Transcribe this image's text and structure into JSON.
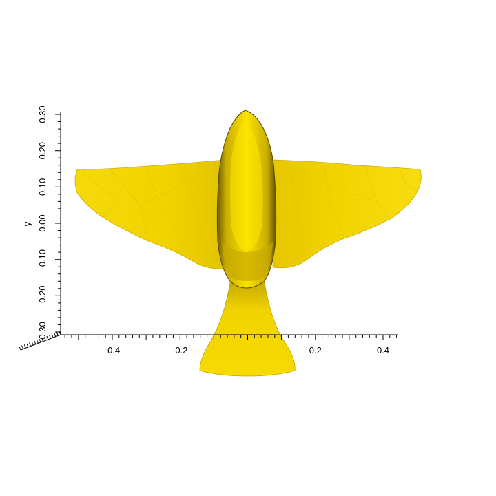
{
  "chart_data": {
    "type": "3d-mesh",
    "description_object": "bird",
    "mesh_color": "#f2d300",
    "x_axis": {
      "label": "",
      "ticks": [
        "-0.4",
        "-0.2",
        "0.2",
        "0.4"
      ],
      "tick_values": [
        -0.4,
        -0.2,
        0.2,
        0.4
      ],
      "range": [
        -0.55,
        0.45
      ]
    },
    "y_axis": {
      "label": "y",
      "ticks": [
        "0.30",
        "0.20",
        "0.10",
        "0.00",
        "-0.10",
        "-0.20",
        "-0.30"
      ],
      "tick_values": [
        0.3,
        0.2,
        0.1,
        0.0,
        -0.1,
        -0.2,
        -0.3
      ],
      "range": [
        -0.33,
        0.33
      ]
    },
    "grid": false
  }
}
